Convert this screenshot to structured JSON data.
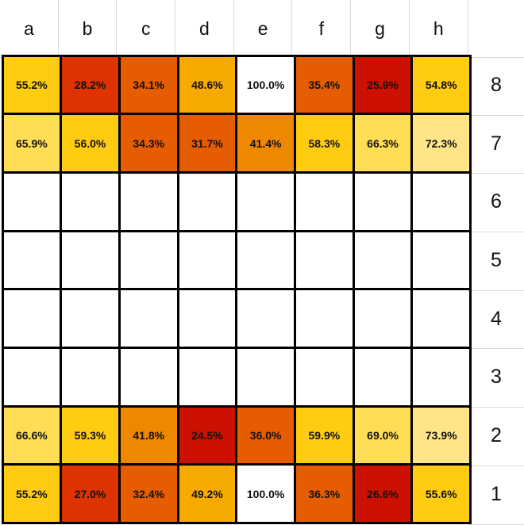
{
  "chart_data": {
    "type": "heatmap",
    "columns": [
      "a",
      "b",
      "c",
      "d",
      "e",
      "f",
      "g",
      "h"
    ],
    "rows": [
      "8",
      "7",
      "6",
      "5",
      "4",
      "3",
      "2",
      "1"
    ],
    "values": [
      [
        "55.2%",
        "28.2%",
        "34.1%",
        "48.6%",
        "100.0%",
        "35.4%",
        "25.9%",
        "54.8%"
      ],
      [
        "65.9%",
        "56.0%",
        "34.3%",
        "31.7%",
        "41.4%",
        "58.3%",
        "66.3%",
        "72.3%"
      ],
      [
        "",
        "",
        "",
        "",
        "",
        "",
        "",
        ""
      ],
      [
        "",
        "",
        "",
        "",
        "",
        "",
        "",
        ""
      ],
      [
        "",
        "",
        "",
        "",
        "",
        "",
        "",
        ""
      ],
      [
        "",
        "",
        "",
        "",
        "",
        "",
        "",
        ""
      ],
      [
        "66.6%",
        "59.3%",
        "41.8%",
        "24.5%",
        "36.0%",
        "59.9%",
        "69.0%",
        "73.9%"
      ],
      [
        "55.2%",
        "27.0%",
        "32.4%",
        "49.2%",
        "100.0%",
        "36.3%",
        "26.6%",
        "55.6%"
      ]
    ],
    "colors": {
      "scale": [
        "#cc1100",
        "#dd3300",
        "#e65c00",
        "#ee8800",
        "#f7aa00",
        "#ffcc11",
        "#ffdd55",
        "#ffe488"
      ],
      "full": "#ffffff",
      "empty": "#ffffff"
    }
  }
}
